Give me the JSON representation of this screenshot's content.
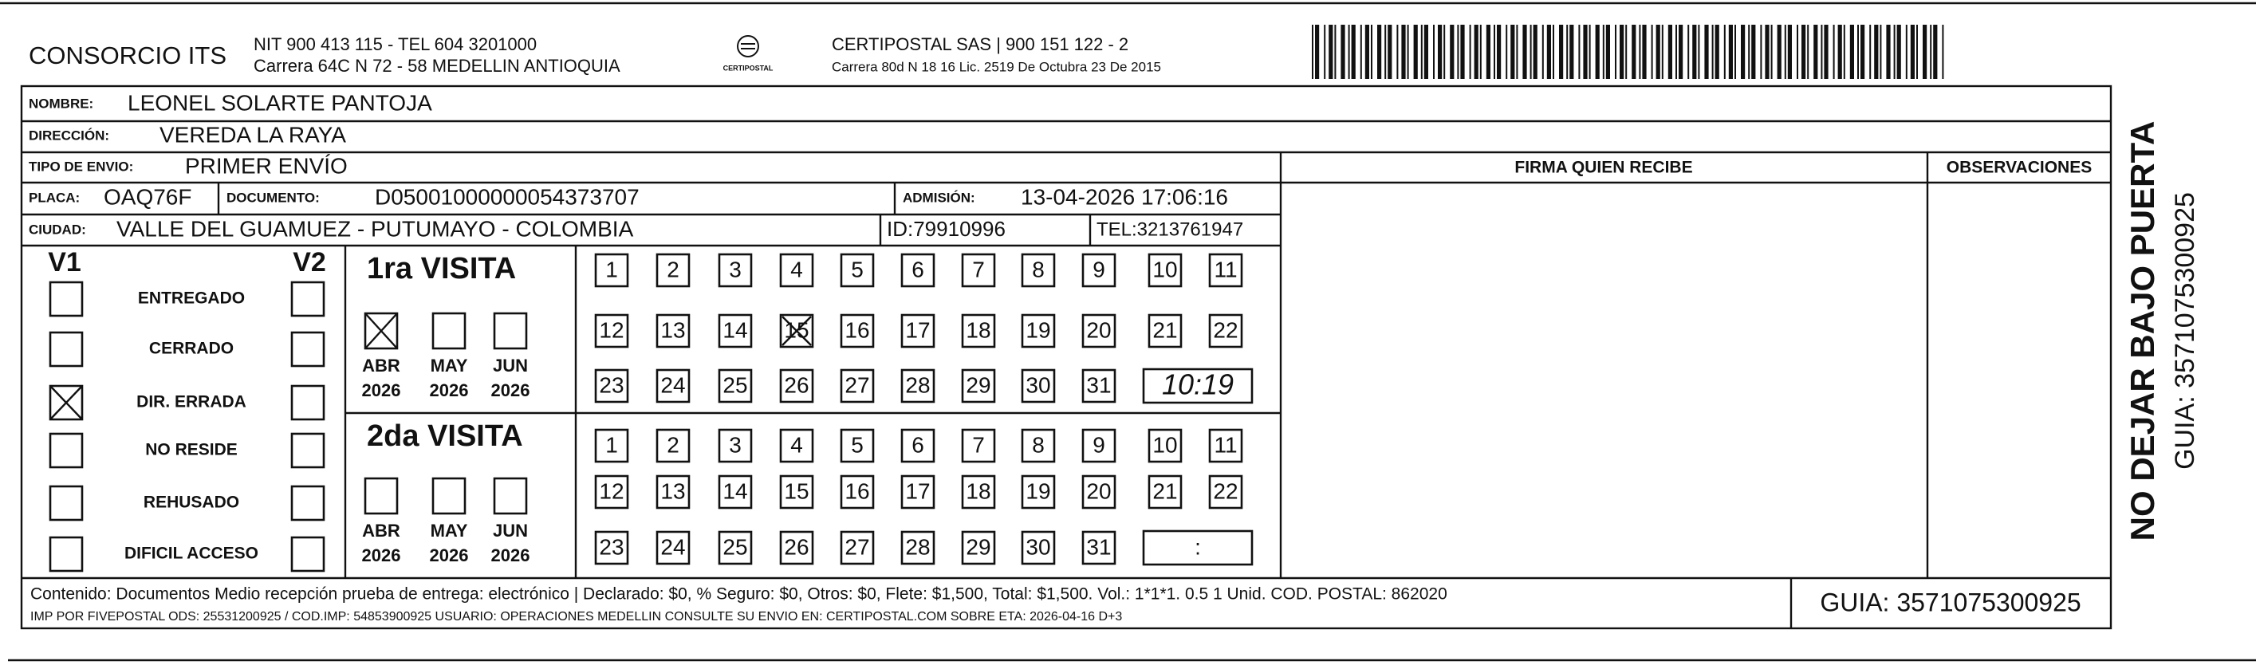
{
  "header": {
    "company": "CONSORCIO ITS",
    "company_line1": "NIT 900 413 115 - TEL 604 3201000",
    "company_line2": "Carrera 64C N 72 - 58 MEDELLIN ANTIOQUIA",
    "logo_text": "CERTIPOSTAL",
    "carrier_line1": "CERTIPOSTAL SAS | 900 151 122 - 2",
    "carrier_line2": "Carrera 80d N 18 16  Lic. 2519 De Octubra 23 De 2015"
  },
  "recipient": {
    "name_label": "NOMBRE:",
    "name": "LEONEL SOLARTE PANTOJA",
    "address_label": "DIRECCIÓN:",
    "address": "VEREDA LA RAYA",
    "shipping_label": "TIPO DE ENVIO:",
    "shipping": "PRIMER ENVÍO",
    "plate_label": "PLACA:",
    "plate": "OAQ76F",
    "document_label": "DOCUMENTO:",
    "document": "D05001000000054373707",
    "admission_label": "ADMISIÓN:",
    "admission": "13-04-2026 17:06:16",
    "city_label": "CIUDAD:",
    "city": "VALLE DEL GUAMUEZ - PUTUMAYO - COLOMBIA",
    "id": "ID:79910996",
    "phone": "TEL:3213761947"
  },
  "columns": {
    "signature": "FIRMA QUIEN RECIBE",
    "observations": "OBSERVACIONES"
  },
  "statuses": {
    "v1": "V1",
    "v2": "V2",
    "items": [
      "ENTREGADO",
      "CERRADO",
      "DIR. ERRADA",
      "NO RESIDE",
      "REHUSADO",
      "DIFICIL ACCESO"
    ]
  },
  "visits": [
    {
      "title": "1ra VISITA",
      "months": [
        "ABR",
        "MAY",
        "JUN"
      ],
      "years": [
        "2026",
        "2026",
        "2026"
      ],
      "days": [
        1,
        2,
        3,
        4,
        5,
        6,
        7,
        8,
        9,
        10,
        11,
        12,
        13,
        14,
        15,
        16,
        17,
        18,
        19,
        20,
        21,
        22,
        23,
        24,
        25,
        26,
        27,
        28,
        29,
        30,
        31
      ],
      "time": "10:19"
    },
    {
      "title": "2da VISITA",
      "months": [
        "ABR",
        "MAY",
        "JUN"
      ],
      "years": [
        "2026",
        "2026",
        "2026"
      ],
      "days": [
        1,
        2,
        3,
        4,
        5,
        6,
        7,
        8,
        9,
        10,
        11,
        12,
        13,
        14,
        15,
        16,
        17,
        18,
        19,
        20,
        21,
        22,
        23,
        24,
        25,
        26,
        27,
        28,
        29,
        30,
        31
      ],
      "time": ":"
    }
  ],
  "side": {
    "warning": "NO DEJAR BAJO PUERTA",
    "guide": "GUIA: 3571075300925"
  },
  "footer": {
    "line1": "Contenido: Documentos Medio recepción prueba de entrega: electrónico | Declarado: $0, % Seguro: $0, Otros: $0, Flete: $1,500, Total: $1,500. Vol.: 1*1*1. 0.5  1 Unid. COD. POSTAL: 862020",
    "line2": "IMP POR FIVEPOSTAL ODS: 25531200925 / COD.IMP: 54853900925 USUARIO: OPERACIONES MEDELLIN CONSULTE SU ENVIO EN: CERTIPOSTAL.COM SOBRE ETA: 2026-04-16 D+3",
    "guide": "GUIA: 3571075300925"
  }
}
